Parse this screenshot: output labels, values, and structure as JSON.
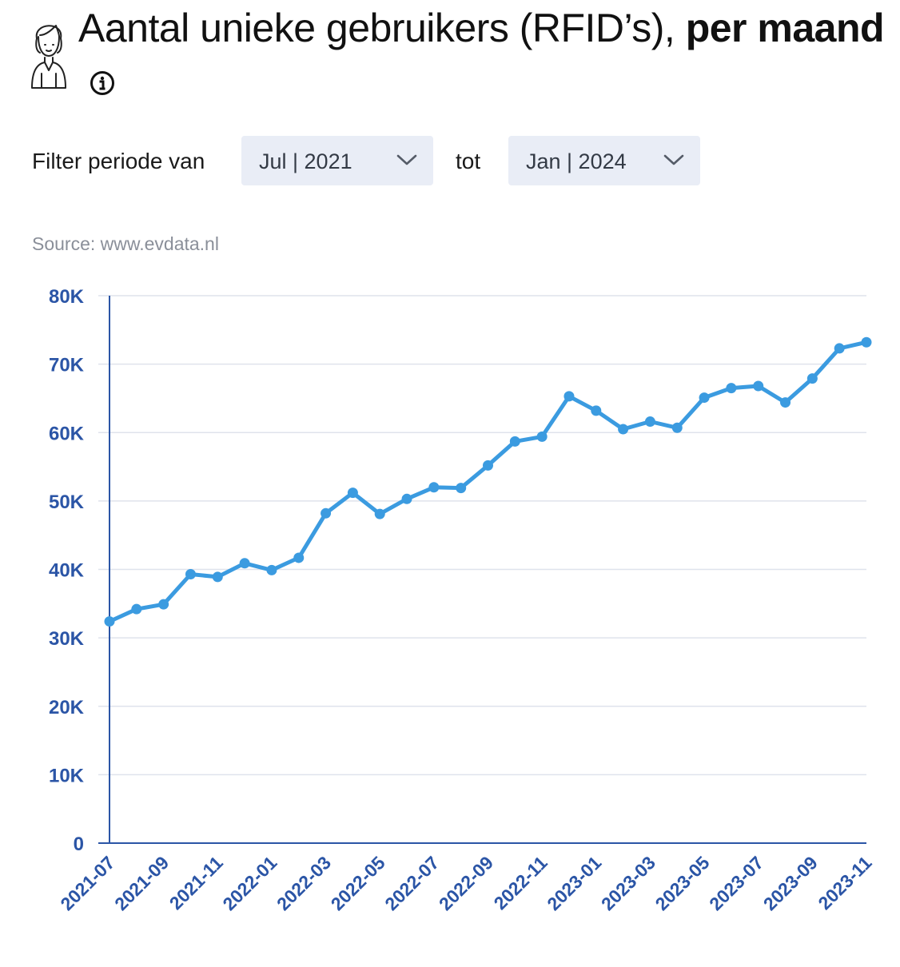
{
  "header": {
    "title_regular": "Aantal unieke gebruikers (RFID’s), ",
    "title_bold": "per maand",
    "icon": "user-avatar-icon",
    "info_icon": "info-icon"
  },
  "filter": {
    "label": "Filter periode van",
    "from_value": "Jul | 2021",
    "to_label": "tot",
    "to_value": "Jan | 2024"
  },
  "source": "Source: www.evdata.nl",
  "colors": {
    "line": "#3b9be0",
    "axis_text": "#2b55a6",
    "grid": "#dfe3ec",
    "axis_line": "#2b55a6",
    "select_bg": "#e9edf6"
  },
  "chart_data": {
    "type": "line",
    "x": [
      "2021-07",
      "2021-08",
      "2021-09",
      "2021-10",
      "2021-11",
      "2021-12",
      "2022-01",
      "2022-02",
      "2022-03",
      "2022-04",
      "2022-05",
      "2022-06",
      "2022-07",
      "2022-08",
      "2022-09",
      "2022-10",
      "2022-11",
      "2022-12",
      "2023-01",
      "2023-02",
      "2023-03",
      "2023-04",
      "2023-05",
      "2023-06",
      "2023-07",
      "2023-08",
      "2023-09",
      "2023-10",
      "2023-11"
    ],
    "x_tick_labels": [
      "2021-07",
      "2021-09",
      "2021-11",
      "2022-01",
      "2022-03",
      "2022-05",
      "2022-07",
      "2022-09",
      "2022-11",
      "2023-01",
      "2023-03",
      "2023-05",
      "2023-07",
      "2023-09",
      "2023-11"
    ],
    "series": [
      {
        "values": [
          32400,
          34200,
          34900,
          39300,
          38900,
          40900,
          39900,
          41700,
          48200,
          51200,
          48100,
          50300,
          52000,
          51900,
          55200,
          58700,
          59400,
          65300,
          63200,
          60500,
          61600,
          60700,
          65100,
          66500,
          66800,
          64400,
          67900,
          72300,
          73200
        ]
      }
    ],
    "ylim": [
      0,
      80000
    ],
    "y_ticks": [
      0,
      10000,
      20000,
      30000,
      40000,
      50000,
      60000,
      70000,
      80000
    ],
    "y_tick_labels": [
      "0",
      "10K",
      "20K",
      "30K",
      "40K",
      "50K",
      "60K",
      "70K",
      "80K"
    ],
    "grid": true,
    "legend": "none"
  }
}
